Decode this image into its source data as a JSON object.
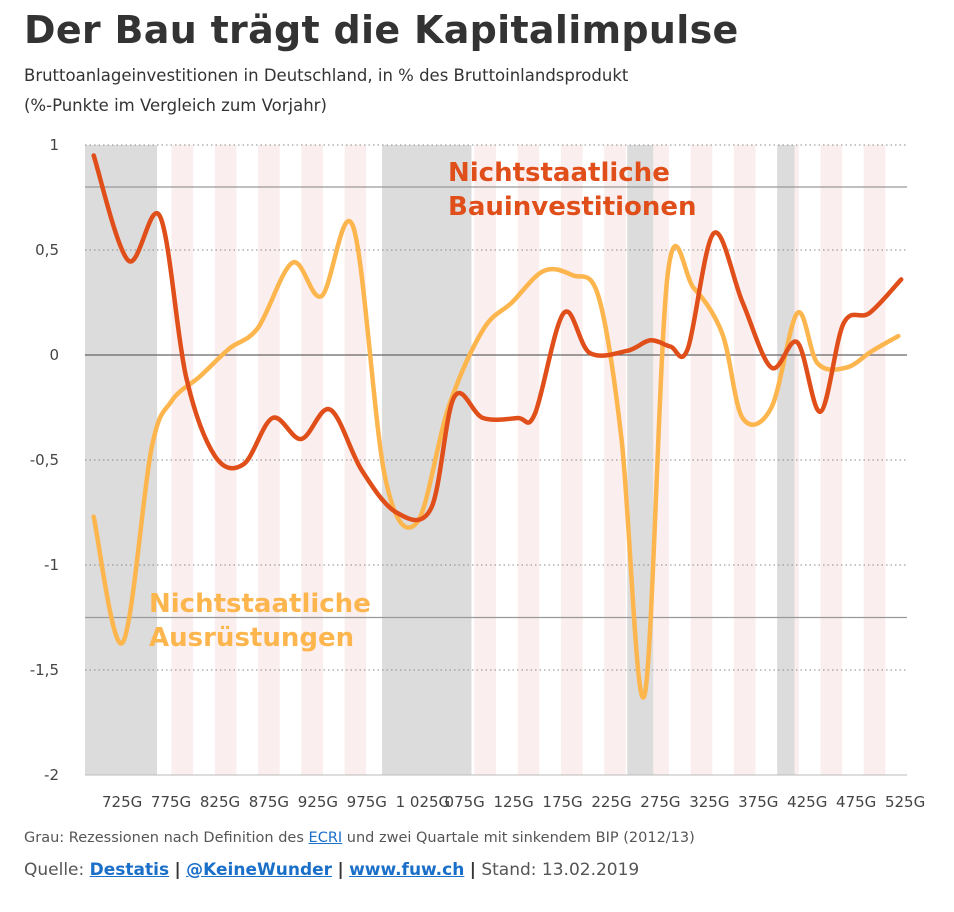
{
  "header": {
    "title": "Der Bau trägt die Kapitalimpulse",
    "subtitle_line1": "Bruttoanlageinvestitionen in Deutschland, in % des Bruttoinlandsprodukt",
    "subtitle_line2": "(%-Punkte im Vergleich zum Vorjahr)"
  },
  "footer": {
    "note_prefix": "Grau: Rezessionen nach Definition des",
    "note_link": "ECRI",
    "note_suffix": "und zwei Quartale mit sinkendem BIP (2012/13)",
    "source_label": "Quelle:",
    "source_destatis": "Destatis",
    "source_twitter": "@KeineWunder",
    "source_site": "www.fuw.ch",
    "separator": "|",
    "stand": "Stand: 13.02.2019"
  },
  "chart_data": {
    "type": "line",
    "title": "Der Bau trägt die Kapitalimpulse",
    "ylim": [
      -2,
      1
    ],
    "y_ticks": [
      1,
      0.5,
      0,
      -0.5,
      -1,
      -1.5,
      -2
    ],
    "y_tick_labels": [
      "1",
      "0,5",
      "0",
      "-0,5",
      "-1",
      "-1,5",
      "-2"
    ],
    "x_tick_labels": [
      "725G",
      "775G",
      "825G",
      "875G",
      "925G",
      "975G",
      "1 025G",
      "075G",
      "125G",
      "175G",
      "225G",
      "275G",
      "325G",
      "375G",
      "425G",
      "475G",
      "525G"
    ],
    "reference_lines": [
      0.8,
      -1.25
    ],
    "grid": "horizontal dotted",
    "colors": {
      "bau": "#e04e1a",
      "ausruestung": "#fdb54e",
      "recession": "#dcdcdc",
      "stripe": "#fbeeee"
    },
    "recession_bands_x": [
      [
        0,
        2.5
      ],
      [
        10.3,
        13.4
      ],
      [
        18.8,
        19.7
      ],
      [
        24,
        24.6
      ]
    ],
    "series": [
      {
        "name": "Nichtstaatliche Bauinvestitionen",
        "label_line1": "Nichtstaatliche",
        "label_line2": "Bauinvestitionen",
        "color": "#e04e1a",
        "points": [
          [
            0.3,
            0.95
          ],
          [
            1.5,
            0.45
          ],
          [
            2.6,
            0.66
          ],
          [
            3.5,
            -0.1
          ],
          [
            4.5,
            -0.48
          ],
          [
            5.5,
            -0.52
          ],
          [
            6.5,
            -0.3
          ],
          [
            7.5,
            -0.4
          ],
          [
            8.5,
            -0.26
          ],
          [
            9.6,
            -0.55
          ],
          [
            10.8,
            -0.75
          ],
          [
            12.0,
            -0.73
          ],
          [
            12.8,
            -0.2
          ],
          [
            13.8,
            -0.3
          ],
          [
            15.0,
            -0.3
          ],
          [
            15.6,
            -0.28
          ],
          [
            16.6,
            0.2
          ],
          [
            17.5,
            0.01
          ],
          [
            18.8,
            0.02
          ],
          [
            19.6,
            0.07
          ],
          [
            20.3,
            0.04
          ],
          [
            20.9,
            0.03
          ],
          [
            21.8,
            0.58
          ],
          [
            22.8,
            0.25
          ],
          [
            23.8,
            -0.06
          ],
          [
            24.7,
            0.06
          ],
          [
            25.5,
            -0.27
          ],
          [
            26.3,
            0.15
          ],
          [
            27.2,
            0.2
          ],
          [
            28.3,
            0.36
          ]
        ]
      },
      {
        "name": "Nichtstaatliche Ausrüstungen",
        "label_line1": "Nichtstaatliche",
        "label_line2": "Ausrüstungen",
        "color": "#fdb54e",
        "points": [
          [
            0.3,
            -0.77
          ],
          [
            1.3,
            -1.37
          ],
          [
            2.3,
            -0.45
          ],
          [
            3.0,
            -0.22
          ],
          [
            4.0,
            -0.1
          ],
          [
            5.0,
            0.03
          ],
          [
            6.0,
            0.13
          ],
          [
            7.2,
            0.44
          ],
          [
            8.2,
            0.28
          ],
          [
            9.3,
            0.61
          ],
          [
            10.4,
            -0.58
          ],
          [
            11.5,
            -0.8
          ],
          [
            12.6,
            -0.25
          ],
          [
            13.8,
            0.12
          ],
          [
            14.8,
            0.25
          ],
          [
            15.9,
            0.4
          ],
          [
            16.9,
            0.38
          ],
          [
            17.8,
            0.28
          ],
          [
            18.6,
            -0.4
          ],
          [
            19.4,
            -1.62
          ],
          [
            20.2,
            0.38
          ],
          [
            21.1,
            0.32
          ],
          [
            22.1,
            0.1
          ],
          [
            22.8,
            -0.3
          ],
          [
            23.8,
            -0.25
          ],
          [
            24.7,
            0.2
          ],
          [
            25.4,
            -0.04
          ],
          [
            26.4,
            -0.06
          ],
          [
            27.3,
            0.02
          ],
          [
            28.2,
            0.09
          ]
        ]
      }
    ]
  }
}
